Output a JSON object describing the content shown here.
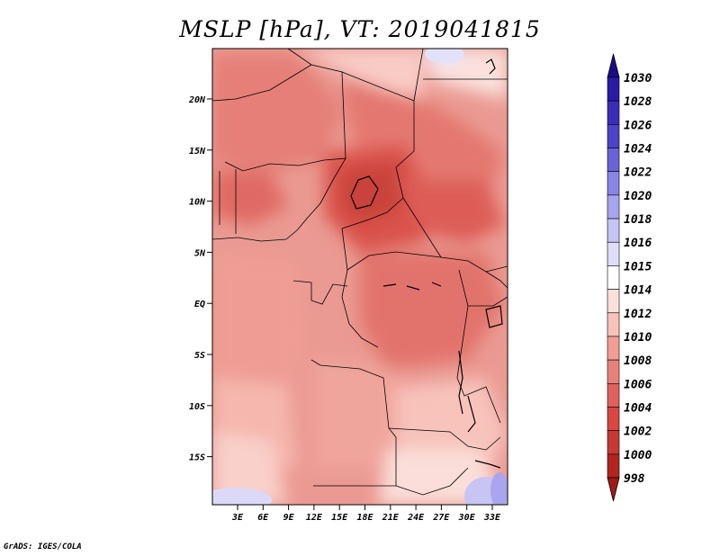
{
  "title": "MSLP [hPa], VT: 2019041815",
  "credit": "GrADS: IGES/COLA",
  "map": {
    "lat_labels": [
      "20N",
      "15N",
      "10N",
      "5N",
      "EQ",
      "5S",
      "10S",
      "15S"
    ],
    "lon_labels": [
      "3E",
      "6E",
      "9E",
      "12E",
      "15E",
      "18E",
      "21E",
      "24E",
      "27E",
      "30E",
      "33E"
    ],
    "lat_range": [
      -20,
      25
    ],
    "lon_range": [
      0,
      35
    ]
  },
  "colorbar": {
    "labels": [
      "1030",
      "1028",
      "1026",
      "1024",
      "1022",
      "1020",
      "1018",
      "1016",
      "1015",
      "1014",
      "1012",
      "1010",
      "1008",
      "1006",
      "1004",
      "1002",
      "1000",
      "998"
    ],
    "colors": [
      "#1a0c88",
      "#2a1aa5",
      "#3a2db8",
      "#4c43c7",
      "#6a63d8",
      "#8a84e6",
      "#a8a4f0",
      "#c6c3f6",
      "#e0ddfa",
      "#ffffff",
      "#fde0dc",
      "#f9c2bb",
      "#f29e95",
      "#e8817a",
      "#df625c",
      "#d74840",
      "#c53a33",
      "#b2241e",
      "#a11a16"
    ]
  }
}
